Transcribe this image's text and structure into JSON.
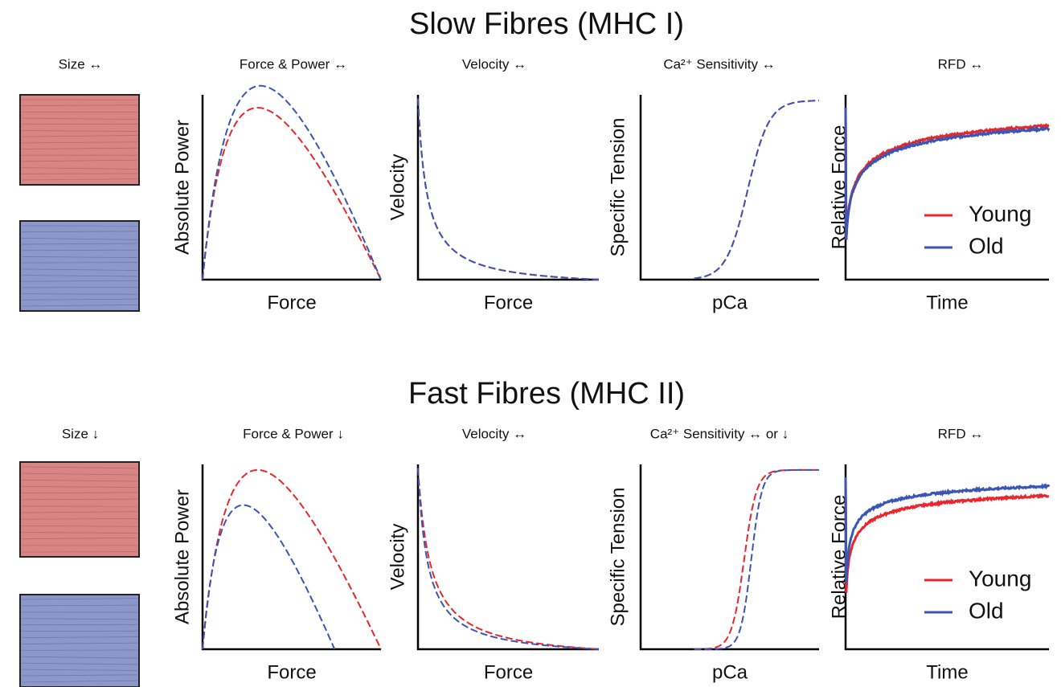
{
  "rows": [
    {
      "title": "Slow Fibres (MHC I)",
      "size": "Size ↔",
      "panels": [
        {
          "header": "Force & Power ↔",
          "y_label": "Absolute Power",
          "x_label": "Force"
        },
        {
          "header": "Velocity ↔",
          "y_label": "Velocity",
          "x_label": "Force"
        },
        {
          "header": "Ca²⁺ Sensitivity ↔",
          "y_label": "Specific Tension",
          "x_label": "pCa"
        },
        {
          "header": "RFD ↔",
          "y_label": "Relative Force",
          "x_label": "Time",
          "legend": [
            "Young",
            "Old"
          ]
        }
      ]
    },
    {
      "title": "Fast Fibres (MHC II)",
      "size": "Size ↓",
      "panels": [
        {
          "header": "Force & Power ↓",
          "y_label": "Absolute Power",
          "x_label": "Force"
        },
        {
          "header": "Velocity ↔",
          "y_label": "Velocity",
          "x_label": "Force"
        },
        {
          "header": "Ca²⁺ Sensitivity ↔ or ↓",
          "y_label": "Specific Tension",
          "x_label": "pCa"
        },
        {
          "header": "RFD ↔",
          "y_label": "Relative Force",
          "x_label": "Time",
          "legend": [
            "Young",
            "Old"
          ]
        }
      ]
    }
  ]
}
